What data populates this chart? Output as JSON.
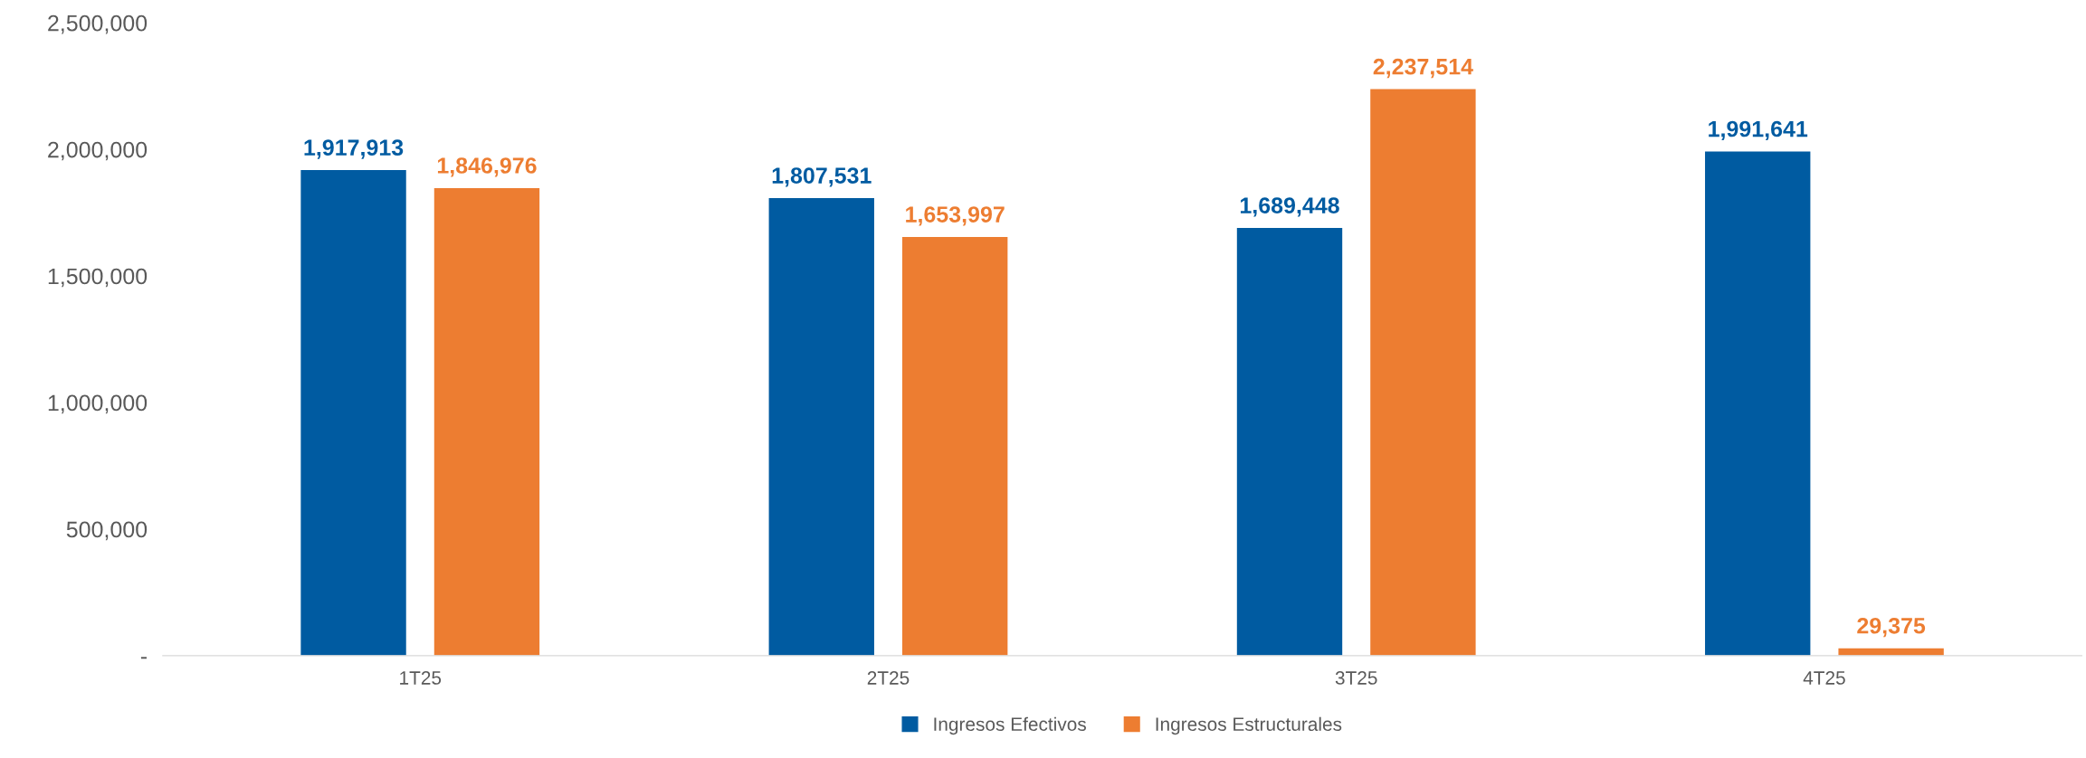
{
  "chart_data": {
    "type": "bar",
    "categories": [
      "1T25",
      "2T25",
      "3T25",
      "4T25"
    ],
    "series": [
      {
        "name": "Ingresos Efectivos",
        "color": "#005ba1",
        "values": [
          1917913,
          1807531,
          1689448,
          1991641
        ]
      },
      {
        "name": "Ingresos Estructurales",
        "color": "#ed7d31",
        "values": [
          1846976,
          1653997,
          2237514,
          29375
        ]
      }
    ],
    "ylim": [
      0,
      2500000
    ],
    "yticks": [
      {
        "value": 0,
        "label": "-"
      },
      {
        "value": 500000,
        "label": "500,000"
      },
      {
        "value": 1000000,
        "label": "1,000,000"
      },
      {
        "value": 1500000,
        "label": "1,500,000"
      },
      {
        "value": 2000000,
        "label": "2,000,000"
      },
      {
        "value": 2500000,
        "label": "2,500,000"
      }
    ],
    "value_labels": [
      [
        "1,917,913",
        "1,807,531",
        "1,689,448",
        "1,991,641"
      ],
      [
        "1,846,976",
        "1,653,997",
        "2,237,514",
        "29,375"
      ]
    ],
    "grid": false,
    "legend": "bottom"
  }
}
